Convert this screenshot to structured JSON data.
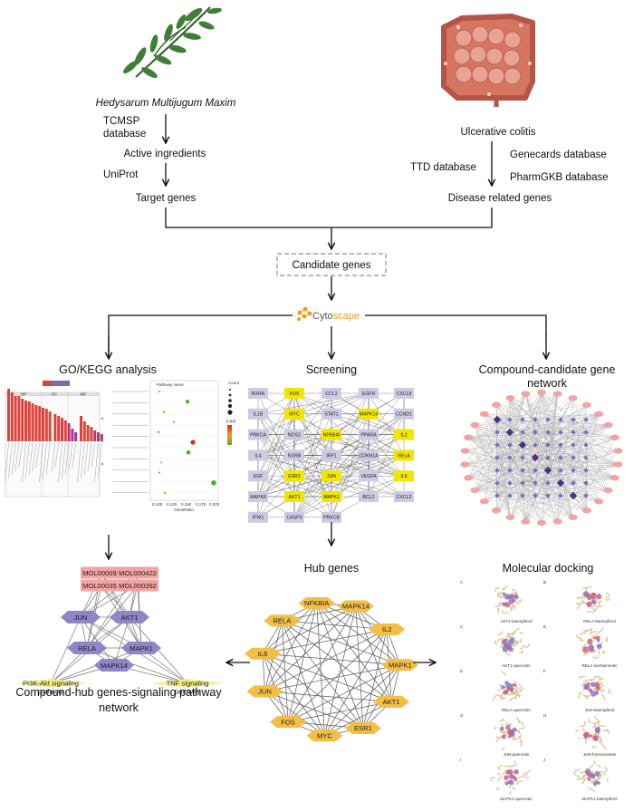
{
  "top": {
    "herb_name": "Hedysarum Multijugum Maxim",
    "disease_name": "Ulcerative colitis"
  },
  "left_branch": {
    "db1": [
      "TCMSP",
      "database"
    ],
    "step1": "Active ingredients",
    "db2": "UniProt",
    "step2": "Target genes"
  },
  "right_branch": {
    "db_genecards": "Genecards database",
    "db_ttd": "TTD database",
    "db_pharmgkb": "PharmGKB database",
    "step": "Disease related genes"
  },
  "center": {
    "candidate": "Candidate genes",
    "tool_prefix": "Cyto",
    "tool_suffix": "scape"
  },
  "sections": {
    "go_kegg": "GO/KEGG analysis",
    "screening": "Screening",
    "compound_network": [
      "Compound-candidate gene",
      "network"
    ],
    "hub_genes": "Hub genes",
    "docking": "Molecular docking",
    "pathway_network": [
      "Compound-hub genes-signaling pathway",
      "network"
    ]
  },
  "go_plot": {
    "bp_tag": "BP",
    "cc_tag": "CC",
    "mf_tag": "MF"
  },
  "kegg_plot": {
    "legend_title": "Pathway name",
    "count_title": "Count",
    "padj_title": "p.adj",
    "xlabel": "GeneRatio",
    "xticks": [
      "0.100",
      "0.125",
      "0.150",
      "0.175",
      "0.200"
    ]
  },
  "screening_genes": [
    [
      "RXRA",
      "FOS",
      "CCL2",
      "EGFR",
      "CXCL8"
    ],
    [
      "IL1B",
      "MYC",
      "STAT1",
      "MAPK14",
      "CCND1"
    ],
    [
      "PRKCA",
      "NOS2",
      "NFKBIA",
      "PPARA",
      "IL2"
    ],
    [
      "IL4",
      "RXRB",
      "IRF1",
      "CDKN1A",
      "RELA"
    ],
    [
      "EGF",
      "ESR1",
      "JUN",
      "VEGFA",
      "IL6"
    ],
    [
      "MAPK8",
      "AKT1",
      "MAPK1",
      "BCL2",
      "CXCL2"
    ],
    [
      "IFNG",
      "CASP3",
      "PRKCB",
      "",
      ""
    ]
  ],
  "screening_hubs": [
    "FOS",
    "MYC",
    "NFKBIA",
    "MAPK14",
    "IL2",
    "RELA",
    "ESR1",
    "JUN",
    "IL6",
    "AKT1",
    "MAPK1"
  ],
  "hub_nodes": [
    "NFKBIA",
    "MAPK14",
    "IL2",
    "MAPK1",
    "AKT1",
    "ESR1",
    "MYC",
    "FOS",
    "JUN",
    "IL6",
    "RELA"
  ],
  "pathway_net": {
    "molecules": [
      "MOL000098",
      "MOL000422",
      "MOL000354",
      "MOL000392"
    ],
    "genes": [
      "JUN",
      "AKT1",
      "RELA",
      "MAPK1",
      "MAPK14"
    ],
    "pathways": [
      [
        "PI3K-Akt signaling",
        "pathway"
      ],
      [
        "TNF signaling",
        "pathway"
      ]
    ]
  },
  "docking_panels": [
    {
      "letter": "A",
      "caption": "AKT1-kaempferol"
    },
    {
      "letter": "B",
      "caption": "RELA-kaempferol"
    },
    {
      "letter": "C",
      "caption": "AKT1-quercetin"
    },
    {
      "letter": "D",
      "caption": "RELA-isorhamnetin"
    },
    {
      "letter": "E",
      "caption": "RELA-quercetin"
    },
    {
      "letter": "F",
      "caption": "JUN-kaempferol"
    },
    {
      "letter": "G",
      "caption": "JUN-quercetin"
    },
    {
      "letter": "H",
      "caption": "JUN-formononetin"
    },
    {
      "letter": "I",
      "caption": "MAPK1-quercetin"
    },
    {
      "letter": "J",
      "caption": "MAPK1-kaempferol"
    }
  ],
  "colors": {
    "hub_yellow": "#f2e600",
    "gene_lilac": "#cccbe3",
    "hub_orange": "#f3be45",
    "mol_pink": "#f4a3a3",
    "gene_purple": "#8d86c7",
    "pathway_yellow": "#f6ef8a",
    "candidate_border": "#8c87c9",
    "cytoscape_orange": "#f29a1a"
  }
}
